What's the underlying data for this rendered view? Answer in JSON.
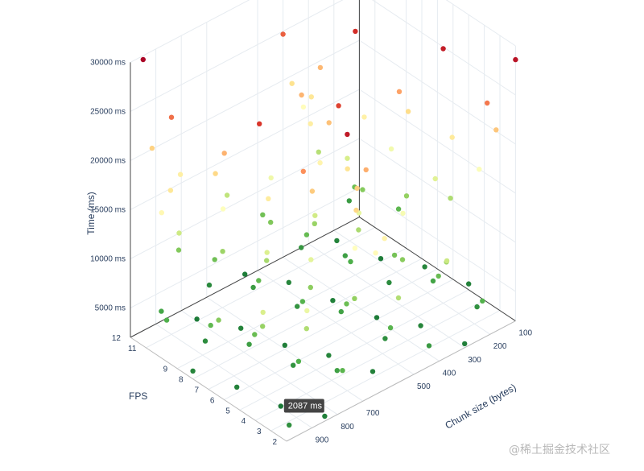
{
  "chart_data": {
    "type": "scatter3d",
    "title": "",
    "axes": {
      "x": {
        "label": "Chunk size (bytes)",
        "range": [
          100,
          1000
        ],
        "ticks": [
          100,
          200,
          300,
          400,
          500,
          700,
          800,
          900
        ]
      },
      "y": {
        "label": "FPS",
        "range": [
          2,
          12
        ],
        "ticks": [
          2,
          3,
          4,
          5,
          6,
          7,
          8,
          9,
          11,
          12
        ]
      },
      "z": {
        "label": "Time (ms)",
        "range": [
          2000,
          30000
        ],
        "ticks": [
          5000,
          10000,
          15000,
          20000,
          25000,
          30000
        ],
        "tick_labels": [
          "5000 ms",
          "10000 ms",
          "15000 ms",
          "20000 ms",
          "25000 ms",
          "30000 ms"
        ]
      }
    },
    "grid": true,
    "colorscale": [
      "#1a7837",
      "#4daf4a",
      "#91cf60",
      "#d9ef8b",
      "#ffffbf",
      "#fee08b",
      "#fc8d59",
      "#d73027",
      "#a50026"
    ],
    "hover_label": {
      "text": "2087 ms",
      "x": 900,
      "y": 4,
      "z": 2087
    },
    "points": [
      [
        100,
        2,
        28600
      ],
      [
        150,
        3,
        23800
      ],
      [
        200,
        5,
        27900
      ],
      [
        250,
        7,
        22100
      ],
      [
        300,
        9,
        26800
      ],
      [
        350,
        11,
        18700
      ],
      [
        400,
        12,
        24700
      ],
      [
        450,
        10,
        21300
      ],
      [
        500,
        8,
        17200
      ],
      [
        550,
        6,
        25800
      ],
      [
        600,
        4,
        20200
      ],
      [
        650,
        2,
        16400
      ],
      [
        700,
        3,
        28100
      ],
      [
        750,
        5,
        22900
      ],
      [
        800,
        7,
        26300
      ],
      [
        850,
        9,
        19800
      ],
      [
        900,
        11,
        24100
      ],
      [
        950,
        12,
        29600
      ],
      [
        1000,
        10,
        16800
      ],
      [
        120,
        4,
        15600
      ],
      [
        170,
        6,
        13200
      ],
      [
        220,
        8,
        14800
      ],
      [
        270,
        10,
        12400
      ],
      [
        320,
        12,
        16200
      ],
      [
        370,
        2,
        11800
      ],
      [
        420,
        4,
        15200
      ],
      [
        470,
        6,
        13800
      ],
      [
        520,
        8,
        12100
      ],
      [
        570,
        10,
        14500
      ],
      [
        620,
        12,
        11300
      ],
      [
        670,
        3,
        16100
      ],
      [
        720,
        5,
        13500
      ],
      [
        770,
        7,
        12800
      ],
      [
        820,
        9,
        15800
      ],
      [
        870,
        11,
        11900
      ],
      [
        920,
        2,
        14200
      ],
      [
        970,
        4,
        12600
      ],
      [
        110,
        6,
        10400
      ],
      [
        160,
        8,
        9200
      ],
      [
        210,
        10,
        8400
      ],
      [
        260,
        12,
        10800
      ],
      [
        310,
        3,
        9800
      ],
      [
        360,
        5,
        8600
      ],
      [
        410,
        7,
        10200
      ],
      [
        460,
        9,
        9400
      ],
      [
        510,
        11,
        8100
      ],
      [
        560,
        2,
        10600
      ],
      [
        610,
        4,
        9100
      ],
      [
        660,
        6,
        8800
      ],
      [
        710,
        8,
        10100
      ],
      [
        760,
        10,
        9600
      ],
      [
        810,
        12,
        8300
      ],
      [
        860,
        3,
        10500
      ],
      [
        910,
        5,
        9300
      ],
      [
        960,
        7,
        8500
      ],
      [
        130,
        9,
        6400
      ],
      [
        180,
        11,
        7200
      ],
      [
        230,
        2,
        5800
      ],
      [
        280,
        4,
        6900
      ],
      [
        330,
        6,
        7600
      ],
      [
        380,
        8,
        5500
      ],
      [
        430,
        10,
        6800
      ],
      [
        480,
        12,
        7400
      ],
      [
        530,
        3,
        6100
      ],
      [
        580,
        5,
        7100
      ],
      [
        630,
        7,
        5900
      ],
      [
        680,
        9,
        6600
      ],
      [
        730,
        11,
        7300
      ],
      [
        780,
        2,
        6200
      ],
      [
        830,
        4,
        5700
      ],
      [
        880,
        6,
        7000
      ],
      [
        930,
        8,
        6500
      ],
      [
        980,
        10,
        5600
      ],
      [
        140,
        12,
        4200
      ],
      [
        190,
        3,
        3600
      ],
      [
        240,
        5,
        4800
      ],
      [
        290,
        7,
        3200
      ],
      [
        340,
        9,
        4500
      ],
      [
        390,
        11,
        3900
      ],
      [
        440,
        2,
        4100
      ],
      [
        490,
        4,
        3400
      ],
      [
        540,
        6,
        4700
      ],
      [
        590,
        8,
        3800
      ],
      [
        640,
        10,
        4300
      ],
      [
        690,
        12,
        3100
      ],
      [
        740,
        3,
        4600
      ],
      [
        790,
        5,
        3700
      ],
      [
        840,
        7,
        4400
      ],
      [
        890,
        9,
        3300
      ],
      [
        940,
        11,
        4900
      ],
      [
        990,
        2,
        3500
      ],
      [
        100,
        5,
        2600
      ],
      [
        150,
        7,
        2900
      ],
      [
        200,
        9,
        2300
      ],
      [
        250,
        11,
        2700
      ],
      [
        300,
        2,
        2400
      ],
      [
        350,
        4,
        2800
      ],
      [
        400,
        6,
        2200
      ],
      [
        450,
        8,
        2500
      ],
      [
        500,
        10,
        2900
      ],
      [
        550,
        12,
        2300
      ],
      [
        600,
        3,
        2600
      ],
      [
        650,
        5,
        2800
      ],
      [
        700,
        7,
        2400
      ],
      [
        750,
        9,
        2700
      ],
      [
        800,
        11,
        2200
      ],
      [
        850,
        2,
        2500
      ],
      [
        900,
        4,
        2087
      ],
      [
        950,
        6,
        2600
      ],
      [
        1000,
        8,
        2800
      ],
      [
        115,
        3,
        20600
      ],
      [
        165,
        5,
        18400
      ],
      [
        215,
        7,
        19600
      ],
      [
        265,
        9,
        17600
      ],
      [
        315,
        11,
        21200
      ],
      [
        365,
        12,
        19200
      ],
      [
        415,
        10,
        17900
      ],
      [
        465,
        8,
        20800
      ],
      [
        515,
        6,
        18900
      ],
      [
        565,
        4,
        21600
      ],
      [
        615,
        2,
        17400
      ],
      [
        665,
        3,
        19900
      ],
      [
        715,
        5,
        20400
      ],
      [
        765,
        7,
        18200
      ],
      [
        815,
        9,
        21400
      ],
      [
        865,
        11,
        17800
      ],
      [
        915,
        12,
        20100
      ],
      [
        965,
        10,
        18600
      ]
    ]
  }
}
